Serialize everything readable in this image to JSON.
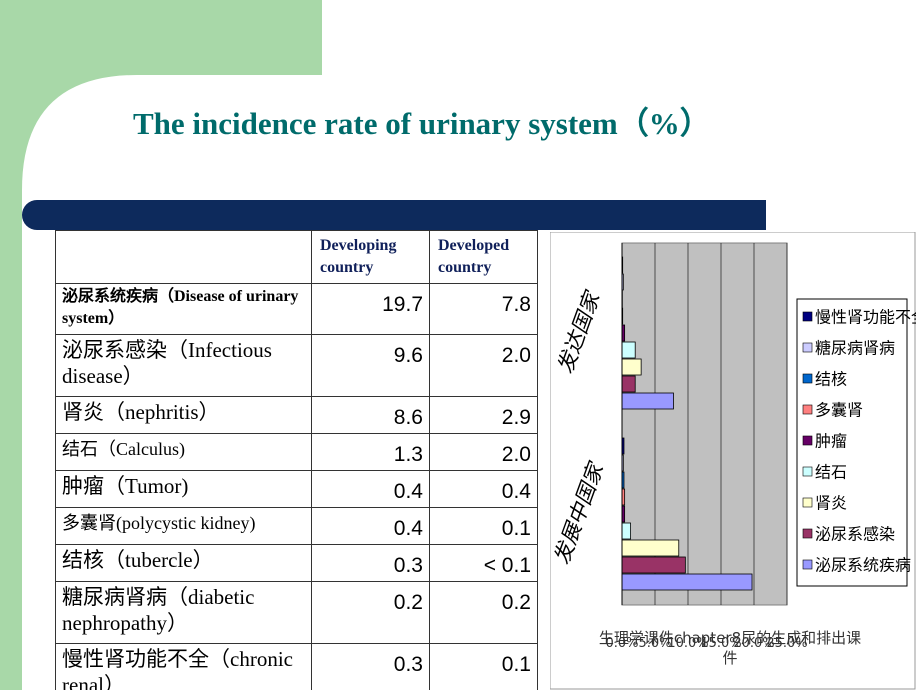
{
  "title": "The incidence rate of  urinary system（%）",
  "table": {
    "header": {
      "developing": "Developing country",
      "developed": "Developed country"
    },
    "rows": [
      {
        "name": "泌尿系统疾病（Disease of urinary system）",
        "developing": "19.7",
        "developed": "7.8"
      },
      {
        "name": "泌尿系感染（Infectious disease）",
        "developing": "9.6",
        "developed": "2.0"
      },
      {
        "name": "肾炎（nephritis）",
        "developing": "8.6",
        "developed": "2.9"
      },
      {
        "name": "结石（Calculus)",
        "developing": "1.3",
        "developed": "2.0"
      },
      {
        "name": "肿瘤（Tumor)",
        "developing": "0.4",
        "developed": "0.4"
      },
      {
        "name": "多囊肾(polycystic kidney)",
        "developing": "0.4",
        "developed": "0.1"
      },
      {
        "name": "结核（tubercle）",
        "developing": "0.3",
        "developed": "< 0.1"
      },
      {
        "name": "糖尿病肾病（diabetic nephropathy）",
        "developing": "0.2",
        "developed": "0.2"
      },
      {
        "name": "慢性肾功能不全（chronic renal）",
        "developing": "0.3",
        "developed": "0.1"
      }
    ]
  },
  "chart_data": {
    "type": "bar",
    "orientation": "horizontal",
    "categories": [
      "发展中国家",
      "发达国家"
    ],
    "series": [
      {
        "name": "泌尿系统疾病",
        "color": "#9999ff",
        "values": [
          19.7,
          7.8
        ]
      },
      {
        "name": "泌尿系感染",
        "color": "#993366",
        "values": [
          9.6,
          2.0
        ]
      },
      {
        "name": "肾炎",
        "color": "#ffffcc",
        "values": [
          8.6,
          2.9
        ]
      },
      {
        "name": "结石",
        "color": "#ccffff",
        "values": [
          1.3,
          2.0
        ]
      },
      {
        "name": "肿瘤",
        "color": "#660066",
        "values": [
          0.4,
          0.4
        ]
      },
      {
        "name": "多囊肾",
        "color": "#ff8080",
        "values": [
          0.4,
          0.1
        ]
      },
      {
        "name": "结核",
        "color": "#0066cc",
        "values": [
          0.3,
          0.05
        ]
      },
      {
        "name": "糖尿病肾病",
        "color": "#ccccff",
        "values": [
          0.2,
          0.2
        ]
      },
      {
        "name": "慢性肾功能不全",
        "color": "#000080",
        "values": [
          0.3,
          0.1
        ]
      }
    ],
    "xlim": [
      0,
      25
    ],
    "xticks": [
      {
        "value": 0,
        "label": "0.0%"
      },
      {
        "value": 5,
        "label": "5.0%"
      },
      {
        "value": 10,
        "label": "10.0%"
      },
      {
        "value": 15,
        "label": "15.0%"
      },
      {
        "value": 20,
        "label": "20.0%"
      },
      {
        "value": 25,
        "label": "25.0%"
      }
    ],
    "grid": true
  },
  "footer": "生理学课件chapter8尿的生成和排出课件"
}
